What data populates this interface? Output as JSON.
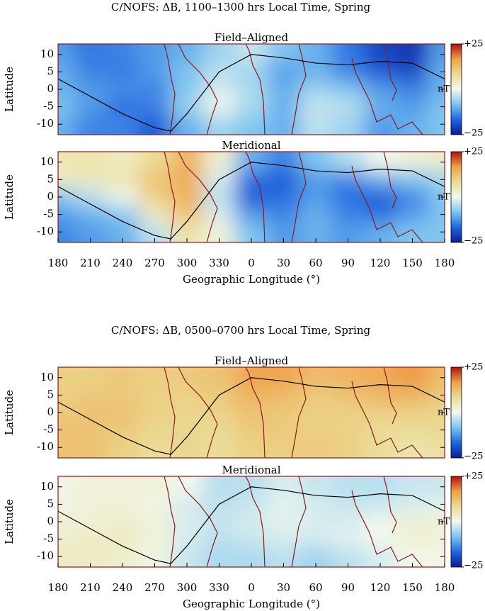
{
  "chart_data": [
    {
      "type": "heatmap",
      "suptitle": "C/NOFS: ΔB, 1100–1300 hrs Local Time, Spring",
      "title": "Field–Aligned",
      "ylabel": "Latitude",
      "x": [
        180,
        210,
        240,
        270,
        300,
        330,
        360,
        390,
        420,
        450,
        480,
        510,
        540
      ],
      "y": [
        10,
        5,
        0,
        -5,
        -10
      ],
      "z": [
        [
          -12,
          -15,
          -14,
          -12,
          -10,
          -6,
          -3,
          -8,
          -10,
          -15,
          -20,
          -22,
          -12
        ],
        [
          -10,
          -14,
          -15,
          -12,
          -8,
          -4,
          -6,
          -12,
          -10,
          -14,
          -18,
          -20,
          -10
        ],
        [
          -10,
          -12,
          -13,
          -14,
          -8,
          -2,
          -5,
          -10,
          -6,
          -8,
          -12,
          -14,
          -10
        ],
        [
          -8,
          -12,
          -16,
          -14,
          -6,
          0,
          -5,
          -10,
          -3,
          -4,
          -10,
          -12,
          -8
        ],
        [
          -10,
          -14,
          -14,
          -18,
          -10,
          -6,
          -8,
          -10,
          -4,
          -6,
          -12,
          -10,
          -8
        ]
      ],
      "xlim": [
        180,
        540
      ],
      "ylim": [
        -13,
        13
      ],
      "yticks": [
        -10,
        -5,
        0,
        5,
        10
      ],
      "zlim": [
        -25,
        25
      ],
      "zticks": [
        {
          "value": 25,
          "label": "+25"
        },
        {
          "value": -25,
          "label": "−25"
        }
      ],
      "colorbar_label": "nT",
      "colormap": [
        "#0a1a9a",
        "#1f66e0",
        "#7cc4f0",
        "#f2f8ee",
        "#eadc94",
        "#f0a048",
        "#b01010"
      ],
      "line": {
        "color": "#000000",
        "x": [
          180,
          210,
          240,
          270,
          285,
          300,
          330,
          360,
          390,
          420,
          450,
          480,
          510,
          540
        ],
        "values": [
          3,
          -2,
          -7,
          -11,
          -12,
          -7,
          5,
          10,
          9,
          7.5,
          7,
          8,
          7.5,
          3
        ]
      }
    },
    {
      "type": "heatmap",
      "title": "Meridional",
      "ylabel": "Latitude",
      "xlabel": "Geographic Longitude (°)",
      "x": [
        180,
        210,
        240,
        270,
        300,
        330,
        360,
        390,
        420,
        450,
        480,
        510,
        540
      ],
      "y": [
        10,
        5,
        0,
        -5,
        -10
      ],
      "z": [
        [
          5,
          6,
          4,
          8,
          14,
          3,
          -10,
          -14,
          -8,
          -4,
          0,
          2,
          4
        ],
        [
          4,
          5,
          6,
          12,
          15,
          -2,
          -16,
          -18,
          -12,
          -14,
          -10,
          -8,
          -6
        ],
        [
          -8,
          -4,
          0,
          10,
          14,
          -4,
          -18,
          -16,
          -12,
          -16,
          -18,
          -14,
          -8
        ],
        [
          -12,
          -10,
          -8,
          4,
          12,
          -2,
          -12,
          -14,
          -10,
          -14,
          -16,
          -12,
          -8
        ],
        [
          -14,
          -12,
          -10,
          -4,
          6,
          2,
          -8,
          -12,
          -10,
          -12,
          -10,
          -8,
          -8
        ]
      ],
      "xlim": [
        180,
        540
      ],
      "xticks": [
        180,
        210,
        240,
        270,
        300,
        330,
        {
          "value": 360,
          "label": "0"
        },
        {
          "value": 390,
          "label": "30"
        },
        {
          "value": 420,
          "label": "60"
        },
        {
          "value": 450,
          "label": "90"
        },
        {
          "value": 480,
          "label": "120"
        },
        {
          "value": 510,
          "label": "150"
        },
        {
          "value": 540,
          "label": "180"
        }
      ],
      "ylim": [
        -13,
        13
      ],
      "yticks": [
        -10,
        -5,
        0,
        5,
        10
      ],
      "zlim": [
        -25,
        25
      ],
      "zticks": [
        {
          "value": 25,
          "label": "+25"
        },
        {
          "value": -25,
          "label": "−25"
        }
      ],
      "colorbar_label": "nT",
      "colormap": [
        "#0a1a9a",
        "#1f66e0",
        "#7cc4f0",
        "#f2f8ee",
        "#eadc94",
        "#f0a048",
        "#b01010"
      ],
      "line": {
        "color": "#000000",
        "x": [
          180,
          210,
          240,
          270,
          285,
          300,
          330,
          360,
          390,
          420,
          450,
          480,
          510,
          540
        ],
        "values": [
          3,
          -2,
          -7,
          -11,
          -12,
          -7,
          5,
          10,
          9,
          7.5,
          7,
          8,
          7.5,
          3
        ]
      }
    },
    {
      "type": "heatmap",
      "suptitle": "C/NOFS: ΔB, 0500–0700 hrs Local Time, Spring",
      "title": "Field–Aligned",
      "ylabel": "Latitude",
      "x": [
        180,
        210,
        240,
        270,
        300,
        330,
        360,
        390,
        420,
        450,
        480,
        510,
        540
      ],
      "y": [
        10,
        5,
        0,
        -5,
        -10
      ],
      "z": [
        [
          10,
          10,
          11,
          10,
          11,
          12,
          16,
          16,
          13,
          14,
          15,
          17,
          13
        ],
        [
          10,
          11,
          11,
          10,
          10,
          11,
          14,
          13,
          11,
          12,
          14,
          14,
          11
        ],
        [
          11,
          12,
          12,
          10,
          9,
          10,
          12,
          11,
          10,
          10,
          10,
          10,
          9
        ],
        [
          12,
          12,
          11,
          9,
          9,
          8,
          11,
          11,
          10,
          10,
          8,
          8,
          9
        ],
        [
          12,
          12,
          10,
          8,
          9,
          8,
          10,
          10,
          11,
          10,
          8,
          6,
          7
        ]
      ],
      "xlim": [
        180,
        540
      ],
      "ylim": [
        -13,
        13
      ],
      "yticks": [
        -10,
        -5,
        0,
        5,
        10
      ],
      "zlim": [
        -25,
        25
      ],
      "zticks": [
        {
          "value": 25,
          "label": "+25"
        },
        {
          "value": -25,
          "label": "−25"
        }
      ],
      "colorbar_label": "nT",
      "colormap": [
        "#0a1a9a",
        "#1f66e0",
        "#7cc4f0",
        "#f2f8ee",
        "#eadc94",
        "#f0a048",
        "#b01010"
      ],
      "line": {
        "color": "#000000",
        "x": [
          180,
          210,
          240,
          270,
          285,
          300,
          330,
          360,
          390,
          420,
          450,
          480,
          510,
          540
        ],
        "values": [
          3,
          -2,
          -7,
          -11,
          -12,
          -7,
          5,
          10,
          9,
          7.5,
          7,
          8,
          7.5,
          3
        ]
      }
    },
    {
      "type": "heatmap",
      "title": "Meridional",
      "ylabel": "Latitude",
      "xlabel": "Geographic Longitude (°)",
      "x": [
        180,
        210,
        240,
        270,
        300,
        330,
        360,
        390,
        420,
        450,
        480,
        510,
        540
      ],
      "y": [
        10,
        5,
        0,
        -5,
        -10
      ],
      "z": [
        [
          1,
          2,
          2,
          2,
          0,
          -4,
          -4,
          -2,
          -3,
          -4,
          -4,
          -3,
          -3
        ],
        [
          1,
          2,
          2,
          1,
          -2,
          -4,
          -3,
          -1,
          -2,
          -3,
          -3,
          -2,
          -1
        ],
        [
          2,
          2,
          3,
          2,
          -2,
          -3,
          -2,
          -1,
          -2,
          -2,
          0,
          2,
          2
        ],
        [
          3,
          4,
          4,
          2,
          -2,
          -4,
          -3,
          -2,
          -2,
          -1,
          0,
          3,
          2
        ],
        [
          4,
          4,
          3,
          1,
          -3,
          -5,
          -5,
          -4,
          -6,
          -4,
          -2,
          0,
          1
        ]
      ],
      "xlim": [
        180,
        540
      ],
      "xticks": [
        180,
        210,
        240,
        270,
        300,
        330,
        {
          "value": 360,
          "label": "0"
        },
        {
          "value": 390,
          "label": "30"
        },
        {
          "value": 420,
          "label": "60"
        },
        {
          "value": 450,
          "label": "90"
        },
        {
          "value": 480,
          "label": "120"
        },
        {
          "value": 510,
          "label": "150"
        },
        {
          "value": 540,
          "label": "180"
        }
      ],
      "ylim": [
        -13,
        13
      ],
      "yticks": [
        -10,
        -5,
        0,
        5,
        10
      ],
      "zlim": [
        -25,
        25
      ],
      "zticks": [
        {
          "value": 25,
          "label": "+25"
        },
        {
          "value": -25,
          "label": "−25"
        }
      ],
      "colorbar_label": "nT",
      "colormap": [
        "#0a1a9a",
        "#1f66e0",
        "#7cc4f0",
        "#f2f8ee",
        "#eadc94",
        "#f0a048",
        "#b01010"
      ],
      "line": {
        "color": "#000000",
        "x": [
          180,
          210,
          240,
          270,
          285,
          300,
          330,
          360,
          390,
          420,
          450,
          480,
          510,
          540
        ],
        "values": [
          3,
          -2,
          -7,
          -11,
          -12,
          -7,
          5,
          10,
          9,
          7.5,
          7,
          8,
          7.5,
          3
        ]
      }
    }
  ]
}
